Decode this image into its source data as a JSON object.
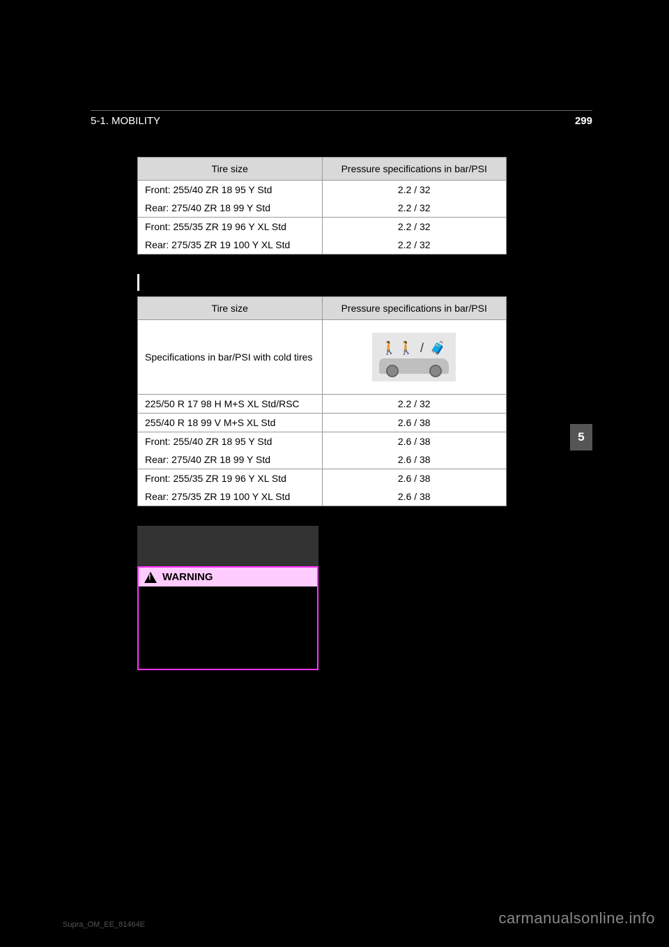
{
  "page": {
    "number_top": "299",
    "section_path": "5-1. MOBILITY",
    "footer_code": "Supra_OM_EE_81464E",
    "side_tab": "5",
    "watermark": "carmanualsonline.info"
  },
  "table1": {
    "headers": [
      "Tire size",
      "Pressure specifications in bar/PSI"
    ],
    "header_bg": "#d9d9d9",
    "border_color": "#999999",
    "rows": [
      {
        "size": "Front: 255/40 ZR 18 95 Y Std",
        "psi": "2.2 / 32",
        "group_end": false
      },
      {
        "size": "Rear: 275/40 ZR 18 99 Y Std",
        "psi": "2.2 / 32",
        "group_end": true
      },
      {
        "size": "Front: 255/35 ZR 19 96 Y XL Std",
        "psi": "2.2 / 32",
        "group_end": false
      },
      {
        "size": "Rear: 275/35 ZR 19 100 Y XL Std",
        "psi": "2.2 / 32",
        "group_end": true
      }
    ]
  },
  "section_label_1": " ",
  "table2": {
    "headers": [
      "Tire size",
      "Pressure specifications in bar/PSI"
    ],
    "spec_row_label": "Specifications in bar/PSI with cold tires",
    "rows": [
      {
        "size": "225/50 R 17 98 H M+S XL Std/RSC",
        "psi": "2.2 / 32",
        "group_end": true
      },
      {
        "size": "255/40 R 18 99 V M+S XL Std",
        "psi": "2.6 / 38",
        "group_end": true
      },
      {
        "size": "Front: 255/40 ZR 18 95 Y Std",
        "psi": "2.6 / 38",
        "group_end": false
      },
      {
        "size": "Rear: 275/40 ZR 18 99 Y Std",
        "psi": "2.6 / 38",
        "group_end": true
      },
      {
        "size": "Front: 255/35 ZR 19 96 Y XL Std",
        "psi": "2.6 / 38",
        "group_end": false
      },
      {
        "size": "Rear: 275/35 ZR 19 100 Y XL Std",
        "psi": "2.6 / 38",
        "group_end": true
      }
    ]
  },
  "sub_heading": " ",
  "warning": {
    "label": "WARNING",
    "body": " ",
    "border_color": "#ff33ff",
    "header_bg": "#ffccff"
  }
}
